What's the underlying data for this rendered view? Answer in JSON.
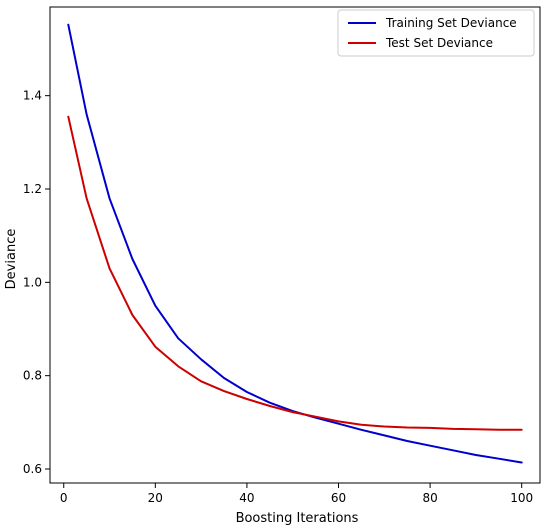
{
  "chart_data": {
    "type": "line",
    "title": "",
    "xlabel": "Boosting Iterations",
    "ylabel": "Deviance",
    "xlim": [
      -3,
      104
    ],
    "ylim": [
      0.57,
      1.59
    ],
    "xticks": [
      0,
      20,
      40,
      60,
      80,
      100
    ],
    "yticks": [
      0.6,
      0.8,
      1.0,
      1.2,
      1.4
    ],
    "xtick_labels": [
      "0",
      "20",
      "40",
      "60",
      "80",
      "100"
    ],
    "ytick_labels": [
      "0.6",
      "0.8",
      "1.0",
      "1.2",
      "1.4"
    ],
    "grid": false,
    "legend_position": "top-right",
    "series": [
      {
        "name": "Training Set Deviance",
        "color": "#0000cc",
        "x": [
          1,
          5,
          10,
          15,
          20,
          25,
          30,
          35,
          40,
          45,
          50,
          55,
          60,
          65,
          70,
          75,
          80,
          85,
          90,
          95,
          100
        ],
        "y": [
          1.552,
          1.36,
          1.18,
          1.05,
          0.95,
          0.88,
          0.835,
          0.795,
          0.765,
          0.742,
          0.724,
          0.71,
          0.697,
          0.684,
          0.672,
          0.66,
          0.65,
          0.64,
          0.63,
          0.622,
          0.614
        ]
      },
      {
        "name": "Test Set Deviance",
        "color": "#cc0000",
        "x": [
          1,
          5,
          10,
          15,
          20,
          25,
          30,
          35,
          40,
          45,
          50,
          55,
          60,
          65,
          70,
          75,
          80,
          85,
          90,
          95,
          100
        ],
        "y": [
          1.355,
          1.18,
          1.03,
          0.93,
          0.862,
          0.82,
          0.788,
          0.767,
          0.75,
          0.735,
          0.722,
          0.712,
          0.702,
          0.695,
          0.691,
          0.689,
          0.688,
          0.686,
          0.685,
          0.684,
          0.684
        ]
      }
    ]
  }
}
